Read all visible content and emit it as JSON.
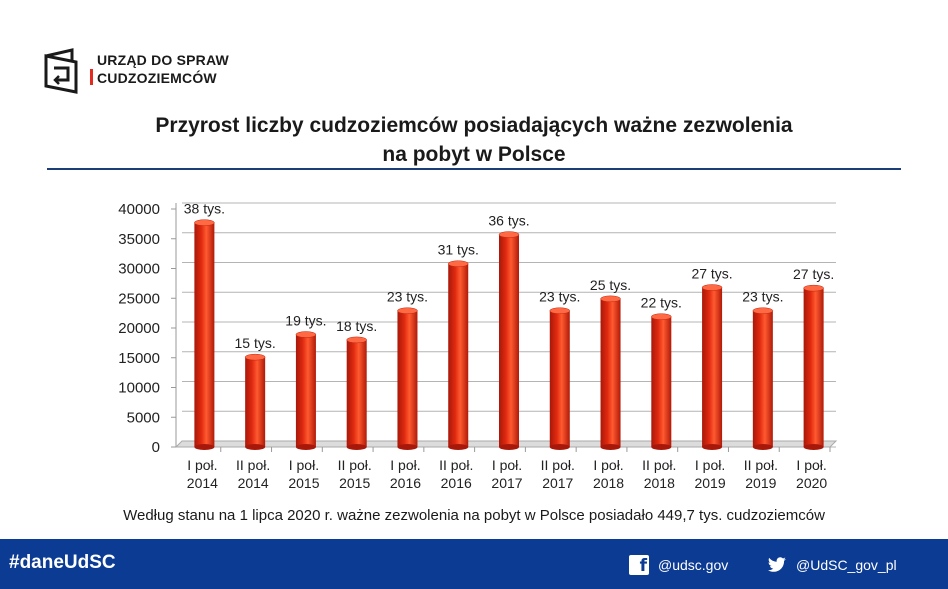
{
  "logo": {
    "line1": "URZĄD DO SPRAW",
    "line2": "CUDZOZIEMCÓW"
  },
  "title_line1": "Przyrost liczby cudzoziemców posiadających ważne zezwolenia",
  "title_line2": "na pobyt w Polsce",
  "note": "Według stanu na 1 lipca 2020 r. ważne zezwolenia na pobyt w Polsce posiadało 449,7 tys. cudzoziemców",
  "footer": {
    "hashtag": "#daneUdSC",
    "facebook": "@udsc.gov",
    "twitter": "@UdSC_gov_pl"
  },
  "colors": {
    "bar": "#e02a10",
    "footer": "#0c3b94",
    "rule": "#1b3e7a",
    "logo_accent": "#e52b20"
  },
  "chart_data": {
    "type": "bar",
    "categories": [
      [
        "I poł.",
        "2014"
      ],
      [
        "II poł.",
        "2014"
      ],
      [
        "I poł.",
        "2015"
      ],
      [
        "II poł.",
        "2015"
      ],
      [
        "I poł.",
        "2016"
      ],
      [
        "II poł.",
        "2016"
      ],
      [
        "I poł.",
        "2017"
      ],
      [
        "II poł.",
        "2017"
      ],
      [
        "I poł.",
        "2018"
      ],
      [
        "II poł.",
        "2018"
      ],
      [
        "I poł.",
        "2019"
      ],
      [
        "II poł.",
        "2019"
      ],
      [
        "I poł.",
        "2020"
      ]
    ],
    "values": [
      37700,
      15100,
      18900,
      18000,
      22900,
      30800,
      35700,
      22900,
      24900,
      21900,
      26800,
      22900,
      26700
    ],
    "data_labels": [
      "38 tys.",
      "15 tys.",
      "19 tys.",
      "18 tys.",
      "23 tys.",
      "31 tys.",
      "36 tys.",
      "23 tys.",
      "25 tys.",
      "22 tys.",
      "27 tys.",
      "23 tys.",
      "27 tys."
    ],
    "yticks": [
      0,
      5000,
      10000,
      15000,
      20000,
      25000,
      30000,
      35000,
      40000
    ],
    "ylim": [
      0,
      40000
    ],
    "grid": true,
    "style": "3d-cylinder"
  }
}
